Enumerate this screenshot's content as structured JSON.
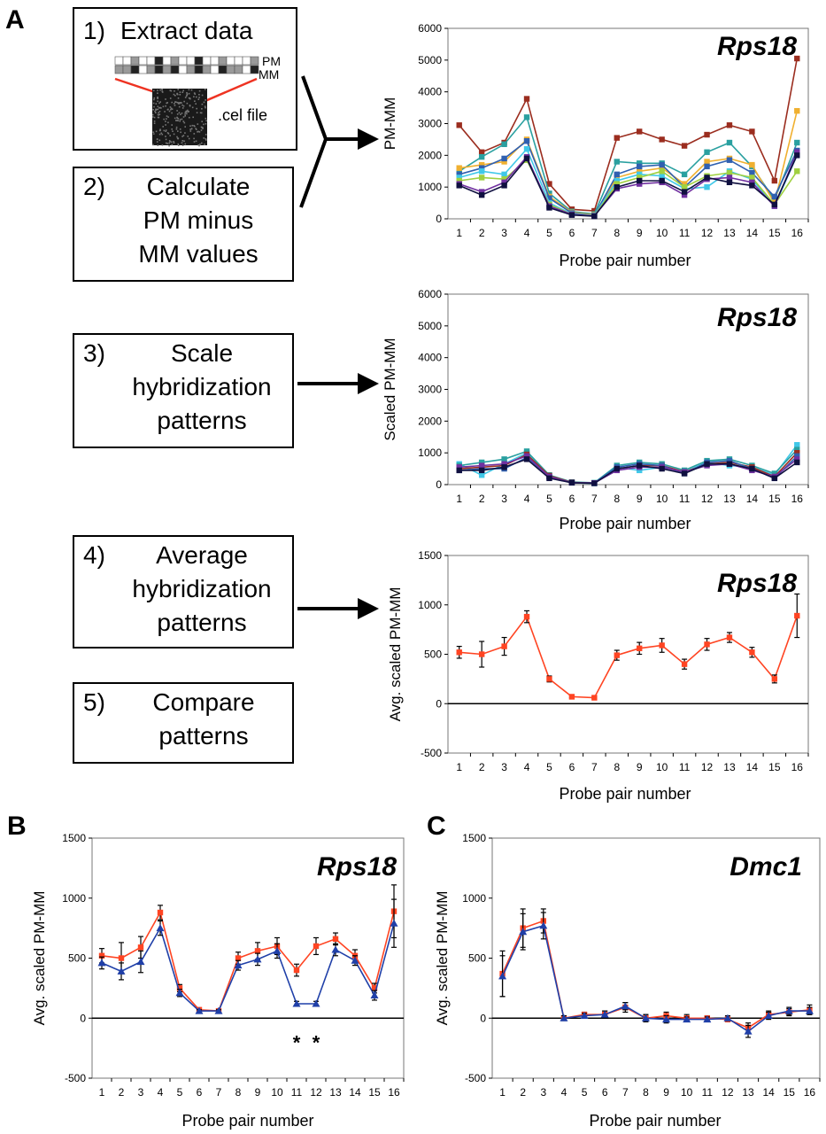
{
  "panels": {
    "a": "A",
    "b": "B",
    "c": "C"
  },
  "steps": [
    {
      "num": "1)",
      "text": "Extract data"
    },
    {
      "num": "2)",
      "text": "Calculate\nPM minus\nMM values"
    },
    {
      "num": "3)",
      "text": "Scale\nhybridization\npatterns"
    },
    {
      "num": "4)",
      "text": "Average\nhybridization\npatterns"
    },
    {
      "num": "5)",
      "text": "Compare\npatterns"
    }
  ],
  "cel": {
    "pm": "PM",
    "mm": "MM",
    "file": ".cel file"
  },
  "colors": {
    "red": "#ff4422",
    "blue": "#1f3fa8",
    "axis": "#000000"
  },
  "charts": [
    {
      "id": "a1",
      "type": "line",
      "title": "Rps18",
      "ylabel": "PM-MM",
      "xlabel": "Probe pair number",
      "ylim": [
        0,
        6000
      ],
      "yticks": [
        0,
        1000,
        2000,
        3000,
        4000,
        5000,
        6000
      ],
      "x": [
        1,
        2,
        3,
        4,
        5,
        6,
        7,
        8,
        9,
        10,
        11,
        12,
        13,
        14,
        15,
        16
      ],
      "series": [
        {
          "color": "#9b2d1f",
          "values": [
            2950,
            2100,
            2400,
            3780,
            1100,
            300,
            250,
            2550,
            2750,
            2500,
            2300,
            2650,
            2950,
            2750,
            1200,
            5050
          ]
        },
        {
          "color": "#2aa0a0",
          "values": [
            1500,
            1950,
            2350,
            3200,
            800,
            230,
            150,
            1800,
            1750,
            1750,
            1400,
            2100,
            2400,
            1650,
            600,
            2400
          ]
        },
        {
          "color": "#f0b030",
          "values": [
            1600,
            1700,
            1800,
            2500,
            700,
            200,
            120,
            1300,
            1500,
            1600,
            1100,
            1800,
            1900,
            1700,
            500,
            3400
          ]
        },
        {
          "color": "#3060b0",
          "values": [
            1400,
            1600,
            1900,
            2450,
            650,
            180,
            100,
            1400,
            1650,
            1700,
            1000,
            1650,
            1850,
            1450,
            700,
            2150
          ]
        },
        {
          "color": "#40c8e8",
          "values": [
            1300,
            1500,
            1400,
            2200,
            500,
            150,
            100,
            1200,
            1400,
            1350,
            950,
            1000,
            1500,
            1250,
            400,
            2000
          ]
        },
        {
          "color": "#a0d040",
          "values": [
            1200,
            1300,
            1250,
            1850,
            450,
            140,
            90,
            1100,
            1300,
            1500,
            1000,
            1350,
            1450,
            1300,
            450,
            1500
          ]
        },
        {
          "color": "#7030a0",
          "values": [
            1100,
            850,
            1150,
            1950,
            400,
            140,
            90,
            950,
            1100,
            1150,
            750,
            1250,
            1300,
            1150,
            400,
            2100
          ]
        },
        {
          "color": "#101040",
          "values": [
            1050,
            750,
            1050,
            1900,
            350,
            120,
            80,
            1000,
            1200,
            1200,
            850,
            1300,
            1150,
            1050,
            450,
            2000
          ]
        }
      ]
    },
    {
      "id": "a2",
      "type": "line",
      "title": "Rps18",
      "ylabel": "Scaled PM-MM",
      "xlabel": "Probe pair number",
      "ylim": [
        0,
        6000
      ],
      "yticks": [
        0,
        1000,
        2000,
        3000,
        4000,
        5000,
        6000
      ],
      "x": [
        1,
        2,
        3,
        4,
        5,
        6,
        7,
        8,
        9,
        10,
        11,
        12,
        13,
        14,
        15,
        16
      ],
      "series": [
        {
          "color": "#40c8e8",
          "values": [
            650,
            300,
            650,
            1000,
            250,
            60,
            40,
            550,
            450,
            550,
            400,
            700,
            600,
            550,
            300,
            1250
          ]
        },
        {
          "color": "#2aa0a0",
          "values": [
            600,
            700,
            800,
            1050,
            300,
            80,
            60,
            600,
            700,
            650,
            450,
            750,
            800,
            600,
            350,
            1100
          ]
        },
        {
          "color": "#9b2d1f",
          "values": [
            500,
            550,
            600,
            950,
            280,
            70,
            50,
            500,
            600,
            600,
            400,
            650,
            700,
            550,
            250,
            1000
          ]
        },
        {
          "color": "#3060b0",
          "values": [
            450,
            500,
            500,
            850,
            250,
            60,
            50,
            550,
            650,
            600,
            350,
            700,
            750,
            500,
            200,
            900
          ]
        },
        {
          "color": "#7030a0",
          "values": [
            550,
            600,
            650,
            900,
            250,
            60,
            50,
            450,
            550,
            550,
            400,
            600,
            650,
            450,
            250,
            800
          ]
        },
        {
          "color": "#101040",
          "values": [
            450,
            450,
            550,
            800,
            200,
            60,
            40,
            500,
            600,
            500,
            350,
            650,
            650,
            500,
            200,
            700
          ]
        }
      ]
    },
    {
      "id": "a3",
      "type": "line",
      "title": "Rps18",
      "ylabel": "Avg. scaled PM-MM",
      "xlabel": "Probe pair number",
      "ylim": [
        -500,
        1500
      ],
      "yticks": [
        -500,
        0,
        500,
        1000,
        1500
      ],
      "x": [
        1,
        2,
        3,
        4,
        5,
        6,
        7,
        8,
        9,
        10,
        11,
        12,
        13,
        14,
        15,
        16
      ],
      "series": [
        {
          "color": "#ff4422",
          "marker": "square",
          "values": [
            520,
            500,
            580,
            880,
            250,
            70,
            60,
            490,
            560,
            590,
            400,
            600,
            670,
            520,
            250,
            890
          ],
          "errors": [
            60,
            130,
            90,
            60,
            30,
            10,
            10,
            50,
            60,
            70,
            50,
            60,
            50,
            50,
            40,
            220
          ]
        }
      ]
    },
    {
      "id": "b",
      "type": "line",
      "title": "Rps18",
      "ylabel": "Avg. scaled PM-MM",
      "xlabel": "Probe pair number",
      "ylim": [
        -500,
        1500
      ],
      "yticks": [
        -500,
        0,
        500,
        1000,
        1500
      ],
      "annotations": [
        "*",
        "*"
      ],
      "x": [
        1,
        2,
        3,
        4,
        5,
        6,
        7,
        8,
        9,
        10,
        11,
        12,
        13,
        14,
        15,
        16
      ],
      "series": [
        {
          "color": "#ff4422",
          "marker": "square",
          "values": [
            520,
            500,
            590,
            880,
            250,
            70,
            60,
            500,
            560,
            600,
            400,
            600,
            660,
            520,
            250,
            890
          ],
          "errors": [
            60,
            130,
            90,
            60,
            30,
            10,
            10,
            50,
            70,
            70,
            50,
            70,
            50,
            50,
            40,
            220
          ]
        },
        {
          "color": "#1f3fa8",
          "marker": "triangle",
          "values": [
            460,
            390,
            470,
            750,
            210,
            60,
            60,
            440,
            490,
            560,
            120,
            120,
            570,
            480,
            190,
            790
          ],
          "errors": [
            50,
            70,
            90,
            60,
            30,
            10,
            10,
            40,
            50,
            60,
            20,
            20,
            50,
            40,
            40,
            200
          ]
        }
      ]
    },
    {
      "id": "c",
      "type": "line",
      "title": "Dmc1",
      "ylabel": "Avg. scaled PM-MM",
      "xlabel": "Probe pair number",
      "ylim": [
        -500,
        1500
      ],
      "yticks": [
        -500,
        0,
        500,
        1000,
        1500
      ],
      "x": [
        1,
        2,
        3,
        4,
        5,
        6,
        7,
        8,
        9,
        10,
        11,
        12,
        13,
        14,
        15,
        16
      ],
      "series": [
        {
          "color": "#ff4422",
          "marker": "square",
          "values": [
            370,
            750,
            810,
            0,
            30,
            30,
            90,
            0,
            20,
            0,
            0,
            -10,
            -80,
            30,
            50,
            70
          ],
          "errors": [
            190,
            160,
            100,
            20,
            20,
            30,
            40,
            30,
            30,
            30,
            20,
            20,
            40,
            30,
            30,
            40
          ]
        },
        {
          "color": "#1f3fa8",
          "marker": "triangle",
          "values": [
            350,
            720,
            770,
            0,
            20,
            30,
            100,
            0,
            -10,
            -10,
            -10,
            0,
            -110,
            20,
            60,
            60
          ],
          "errors": [
            170,
            150,
            110,
            20,
            20,
            30,
            30,
            30,
            30,
            20,
            20,
            20,
            50,
            30,
            30,
            30
          ]
        }
      ]
    }
  ]
}
